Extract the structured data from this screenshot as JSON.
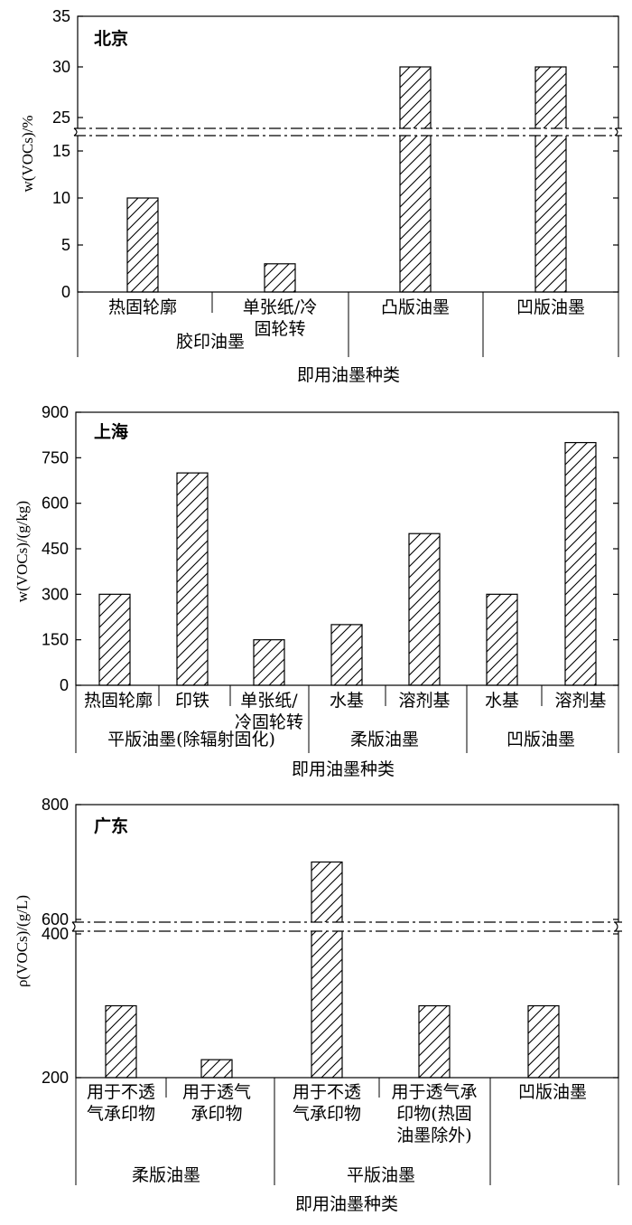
{
  "chart_data": [
    {
      "type": "bar",
      "region": "北京",
      "ylabel": "w(VOCs)/%",
      "xlabel": "即用油墨种类",
      "broken_axis": true,
      "yticks_lower": [
        "0",
        "5",
        "10",
        "15"
      ],
      "yticks_upper": [
        "25",
        "30",
        "35"
      ],
      "categories": [
        "热固轮廓",
        "单张纸/冷\n固轮转",
        "凸版油墨",
        "凹版油墨"
      ],
      "values": [
        10,
        3,
        30,
        30
      ],
      "groups": [
        {
          "label": "胶印油墨",
          "span": [
            0,
            1
          ]
        },
        {
          "label": "",
          "span": [
            2,
            2
          ]
        },
        {
          "label": "",
          "span": [
            3,
            3
          ]
        }
      ]
    },
    {
      "type": "bar",
      "region": "上海",
      "ylabel": "w(VOCs)/(g/kg)",
      "xlabel": "即用油墨种类",
      "broken_axis": false,
      "yticks": [
        "0",
        "150",
        "300",
        "450",
        "600",
        "750",
        "900"
      ],
      "ylim": [
        0,
        900
      ],
      "categories": [
        "热固轮廓",
        "印铁",
        "单张纸/\n冷固轮转",
        "水基",
        "溶剂基",
        "水基",
        "溶剂基"
      ],
      "values": [
        300,
        700,
        150,
        200,
        500,
        300,
        800
      ],
      "groups": [
        {
          "label": "平版油墨(除辐射固化)",
          "span": [
            0,
            2
          ]
        },
        {
          "label": "柔版油墨",
          "span": [
            3,
            4
          ]
        },
        {
          "label": "凹版油墨",
          "span": [
            5,
            6
          ]
        }
      ]
    },
    {
      "type": "bar",
      "region": "广东",
      "ylabel": "ρ(VOCs)/(g/L)",
      "xlabel": "即用油墨种类",
      "broken_axis": true,
      "yticks_lower": [
        "200",
        "400"
      ],
      "yticks_upper": [
        "600",
        "800"
      ],
      "categories": [
        "用于不透\n气承印物",
        "用于透气\n承印物",
        "用于不透\n气承印物",
        "用于透气承\n印物(热固\n油墨除外)",
        "凹版油墨"
      ],
      "values": [
        300,
        225,
        700,
        300,
        300
      ],
      "groups": [
        {
          "label": "柔版油墨",
          "span": [
            0,
            1
          ]
        },
        {
          "label": "平版油墨",
          "span": [
            2,
            3
          ]
        },
        {
          "label": "",
          "span": [
            4,
            4
          ]
        }
      ]
    }
  ]
}
